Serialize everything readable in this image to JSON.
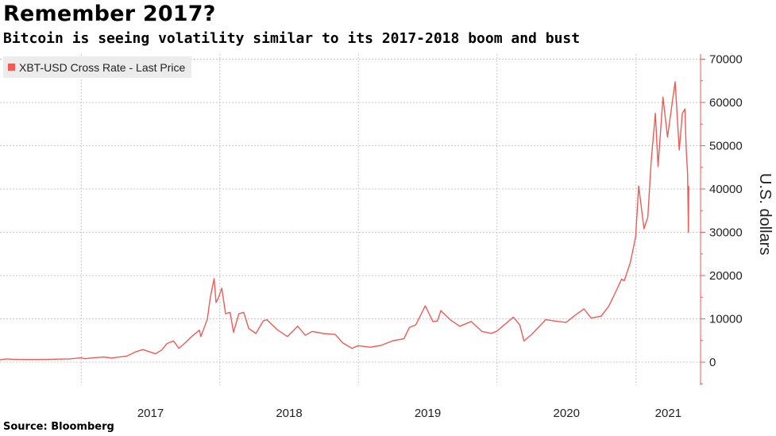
{
  "header": {
    "title": "Remember 2017?",
    "subtitle": "Bitcoin is seeing volatility similar to its 2017-2018 boom and bust"
  },
  "footer": {
    "source": "Source: Bloomberg"
  },
  "colors": {
    "series": "#f15a55",
    "grid": "#c9c9c9",
    "legend_bg": "#ececec"
  },
  "chart_data": {
    "type": "line",
    "title": "Remember 2017?",
    "subtitle": "Bitcoin is seeing volatility similar to its 2017-2018 boom and bust",
    "xlabel": "",
    "ylabel": "U.S. dollars",
    "y_axis_side": "right",
    "ylim": [
      -5000,
      71000
    ],
    "xlim": [
      "2016-06-01",
      "2021-06-20"
    ],
    "y_ticks": [
      0,
      10000,
      20000,
      30000,
      40000,
      50000,
      60000,
      70000
    ],
    "y_tick_labels": [
      "0",
      "10000",
      "20000",
      "30000",
      "40000",
      "50000",
      "60000",
      "70000"
    ],
    "x_ticks": [
      "2017",
      "2018",
      "2019",
      "2020",
      "2021"
    ],
    "grid": true,
    "legend_position": "top-left",
    "series": [
      {
        "name": "XBT-USD Cross Rate - Last Price",
        "color": "#f15a55",
        "points": [
          [
            "2016-06-01",
            530
          ],
          [
            "2016-06-17",
            750
          ],
          [
            "2016-07-01",
            680
          ],
          [
            "2016-08-01",
            600
          ],
          [
            "2016-09-01",
            610
          ],
          [
            "2016-10-01",
            615
          ],
          [
            "2016-11-01",
            700
          ],
          [
            "2016-12-01",
            750
          ],
          [
            "2017-01-01",
            1000
          ],
          [
            "2017-01-11",
            790
          ],
          [
            "2017-02-01",
            1000
          ],
          [
            "2017-03-01",
            1200
          ],
          [
            "2017-03-24",
            940
          ],
          [
            "2017-04-01",
            1080
          ],
          [
            "2017-05-01",
            1400
          ],
          [
            "2017-05-25",
            2400
          ],
          [
            "2017-06-12",
            2900
          ],
          [
            "2017-07-16",
            1950
          ],
          [
            "2017-08-01",
            2800
          ],
          [
            "2017-08-15",
            4300
          ],
          [
            "2017-09-01",
            4900
          ],
          [
            "2017-09-15",
            3200
          ],
          [
            "2017-10-01",
            4400
          ],
          [
            "2017-10-20",
            6000
          ],
          [
            "2017-11-08",
            7400
          ],
          [
            "2017-11-12",
            5900
          ],
          [
            "2017-11-29",
            9900
          ],
          [
            "2017-12-07",
            15000
          ],
          [
            "2017-12-17",
            19300
          ],
          [
            "2017-12-22",
            13800
          ],
          [
            "2017-12-28",
            14800
          ],
          [
            "2018-01-06",
            17100
          ],
          [
            "2018-01-16",
            11200
          ],
          [
            "2018-01-28",
            11500
          ],
          [
            "2018-02-06",
            6900
          ],
          [
            "2018-02-20",
            11200
          ],
          [
            "2018-03-05",
            11500
          ],
          [
            "2018-03-18",
            7800
          ],
          [
            "2018-04-06",
            6600
          ],
          [
            "2018-04-25",
            9500
          ],
          [
            "2018-05-05",
            9800
          ],
          [
            "2018-06-01",
            7500
          ],
          [
            "2018-06-28",
            5900
          ],
          [
            "2018-07-25",
            8300
          ],
          [
            "2018-08-14",
            6200
          ],
          [
            "2018-09-01",
            7100
          ],
          [
            "2018-10-01",
            6600
          ],
          [
            "2018-11-01",
            6400
          ],
          [
            "2018-11-20",
            4500
          ],
          [
            "2018-12-15",
            3200
          ],
          [
            "2018-12-31",
            3800
          ],
          [
            "2019-02-01",
            3450
          ],
          [
            "2019-03-01",
            3850
          ],
          [
            "2019-04-02",
            4950
          ],
          [
            "2019-05-01",
            5400
          ],
          [
            "2019-05-15",
            8000
          ],
          [
            "2019-06-01",
            8600
          ],
          [
            "2019-06-26",
            13000
          ],
          [
            "2019-07-16",
            9400
          ],
          [
            "2019-07-28",
            9500
          ],
          [
            "2019-08-06",
            11900
          ],
          [
            "2019-09-01",
            9700
          ],
          [
            "2019-09-25",
            8300
          ],
          [
            "2019-10-25",
            9400
          ],
          [
            "2019-11-22",
            7100
          ],
          [
            "2019-12-17",
            6650
          ],
          [
            "2020-01-01",
            7200
          ],
          [
            "2020-02-13",
            10400
          ],
          [
            "2020-03-01",
            8600
          ],
          [
            "2020-03-12",
            4900
          ],
          [
            "2020-04-01",
            6400
          ],
          [
            "2020-05-08",
            9800
          ],
          [
            "2020-06-01",
            9500
          ],
          [
            "2020-07-01",
            9200
          ],
          [
            "2020-07-27",
            11000
          ],
          [
            "2020-08-17",
            12300
          ],
          [
            "2020-09-05",
            10200
          ],
          [
            "2020-10-01",
            10600
          ],
          [
            "2020-10-21",
            12900
          ],
          [
            "2020-11-05",
            15600
          ],
          [
            "2020-11-24",
            19200
          ],
          [
            "2020-12-01",
            18800
          ],
          [
            "2020-12-17",
            23000
          ],
          [
            "2020-12-31",
            29000
          ],
          [
            "2021-01-08",
            40700
          ],
          [
            "2021-01-22",
            30800
          ],
          [
            "2021-02-01",
            33500
          ],
          [
            "2021-02-10",
            46500
          ],
          [
            "2021-02-21",
            57500
          ],
          [
            "2021-02-28",
            45200
          ],
          [
            "2021-03-13",
            61200
          ],
          [
            "2021-03-25",
            52000
          ],
          [
            "2021-04-14",
            64800
          ],
          [
            "2021-04-25",
            49000
          ],
          [
            "2021-05-03",
            57500
          ],
          [
            "2021-05-10",
            58500
          ],
          [
            "2021-05-13",
            49700
          ],
          [
            "2021-05-17",
            43500
          ],
          [
            "2021-05-19",
            30000
          ],
          [
            "2021-05-20",
            40700
          ]
        ]
      }
    ]
  }
}
